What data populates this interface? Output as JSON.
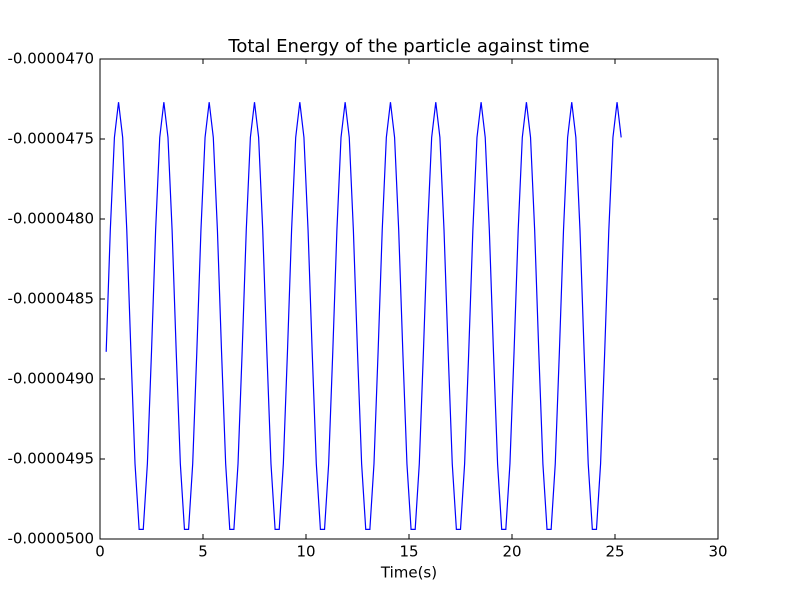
{
  "chart_data": {
    "type": "line",
    "title": "Total Energy of the particle against time",
    "x_label": "Time(s)",
    "x": [
      0.3,
      0.5,
      0.7,
      0.9,
      1.1,
      1.3,
      1.5,
      1.7,
      1.9,
      2.1,
      2.3,
      2.5,
      2.7,
      2.9,
      3.1,
      3.3,
      3.5,
      3.7,
      3.9,
      4.1,
      4.3,
      4.5,
      4.7,
      4.9,
      5.1,
      5.3,
      5.5,
      5.7,
      5.9,
      6.1,
      6.3,
      6.5,
      6.7,
      6.9,
      7.1,
      7.3,
      7.5,
      7.7,
      7.9,
      8.1,
      8.3,
      8.5,
      8.7,
      8.9,
      9.1,
      9.3,
      9.5,
      9.7,
      9.9,
      10.1,
      10.3,
      10.5,
      10.7,
      10.9,
      11.1,
      11.3,
      11.5,
      11.7,
      11.9,
      12.1,
      12.3,
      12.5,
      12.7,
      12.9,
      13.1,
      13.3,
      13.5,
      13.7,
      13.9,
      14.1,
      14.3,
      14.5,
      14.7,
      14.9,
      15.1,
      15.3,
      15.5,
      15.7,
      15.9,
      16.1,
      16.3,
      16.5,
      16.7,
      16.9,
      17.1,
      17.3,
      17.5,
      17.7,
      17.9,
      18.1,
      18.3,
      18.5,
      18.7,
      18.9,
      19.1,
      19.3,
      19.5,
      19.7,
      19.9,
      20.1,
      20.3,
      20.5,
      20.7,
      20.9,
      21.1,
      21.3,
      21.5,
      21.7,
      21.9,
      22.1,
      22.3,
      22.5,
      22.7,
      22.9,
      23.1,
      23.3,
      23.5,
      23.7,
      23.9,
      24.1,
      24.3,
      24.5,
      24.7,
      24.9,
      25.1,
      25.3
    ],
    "values": [
      -4.883e-05,
      -4.807e-05,
      -4.749e-05,
      -4.727e-05,
      -4.749e-05,
      -4.807e-05,
      -4.883e-05,
      -4.953e-05,
      -4.994e-05,
      -4.994e-05,
      -4.953e-05,
      -4.883e-05,
      -4.807e-05,
      -4.749e-05,
      -4.727e-05,
      -4.749e-05,
      -4.807e-05,
      -4.883e-05,
      -4.953e-05,
      -4.994e-05,
      -4.994e-05,
      -4.953e-05,
      -4.883e-05,
      -4.807e-05,
      -4.749e-05,
      -4.727e-05,
      -4.749e-05,
      -4.807e-05,
      -4.883e-05,
      -4.953e-05,
      -4.994e-05,
      -4.994e-05,
      -4.953e-05,
      -4.883e-05,
      -4.807e-05,
      -4.749e-05,
      -4.727e-05,
      -4.749e-05,
      -4.807e-05,
      -4.883e-05,
      -4.953e-05,
      -4.994e-05,
      -4.994e-05,
      -4.953e-05,
      -4.883e-05,
      -4.807e-05,
      -4.749e-05,
      -4.727e-05,
      -4.749e-05,
      -4.807e-05,
      -4.883e-05,
      -4.953e-05,
      -4.994e-05,
      -4.994e-05,
      -4.953e-05,
      -4.883e-05,
      -4.807e-05,
      -4.749e-05,
      -4.727e-05,
      -4.749e-05,
      -4.807e-05,
      -4.883e-05,
      -4.953e-05,
      -4.994e-05,
      -4.994e-05,
      -4.953e-05,
      -4.883e-05,
      -4.807e-05,
      -4.749e-05,
      -4.727e-05,
      -4.749e-05,
      -4.807e-05,
      -4.883e-05,
      -4.953e-05,
      -4.994e-05,
      -4.994e-05,
      -4.953e-05,
      -4.883e-05,
      -4.807e-05,
      -4.749e-05,
      -4.727e-05,
      -4.749e-05,
      -4.807e-05,
      -4.883e-05,
      -4.953e-05,
      -4.994e-05,
      -4.994e-05,
      -4.953e-05,
      -4.883e-05,
      -4.807e-05,
      -4.749e-05,
      -4.727e-05,
      -4.749e-05,
      -4.807e-05,
      -4.883e-05,
      -4.953e-05,
      -4.994e-05,
      -4.994e-05,
      -4.953e-05,
      -4.883e-05,
      -4.807e-05,
      -4.749e-05,
      -4.727e-05,
      -4.749e-05,
      -4.807e-05,
      -4.883e-05,
      -4.953e-05,
      -4.994e-05,
      -4.994e-05,
      -4.953e-05,
      -4.883e-05,
      -4.807e-05,
      -4.749e-05,
      -4.727e-05,
      -4.749e-05,
      -4.807e-05,
      -4.883e-05,
      -4.953e-05,
      -4.994e-05,
      -4.994e-05,
      -4.953e-05,
      -4.883e-05,
      -4.807e-05,
      -4.749e-05,
      -4.727e-05,
      -4.749e-05
    ],
    "color": "#0000ff",
    "xlim": [
      0,
      30
    ],
    "xticks": [
      0,
      5,
      10,
      15,
      20,
      25,
      30
    ],
    "ylim": [
      -5e-05,
      -4.7e-05
    ],
    "yticks": [
      {
        "value": -5e-05,
        "label": "-0.0000500"
      },
      {
        "value": -4.95e-05,
        "label": "-0.0000495"
      },
      {
        "value": -4.9e-05,
        "label": "-0.0000490"
      },
      {
        "value": -4.85e-05,
        "label": "-0.0000485"
      },
      {
        "value": -4.8e-05,
        "label": "-0.0000480"
      },
      {
        "value": -4.75e-05,
        "label": "-0.0000475"
      },
      {
        "value": -4.7e-05,
        "label": "-0.0000470"
      }
    ],
    "grid": false
  }
}
